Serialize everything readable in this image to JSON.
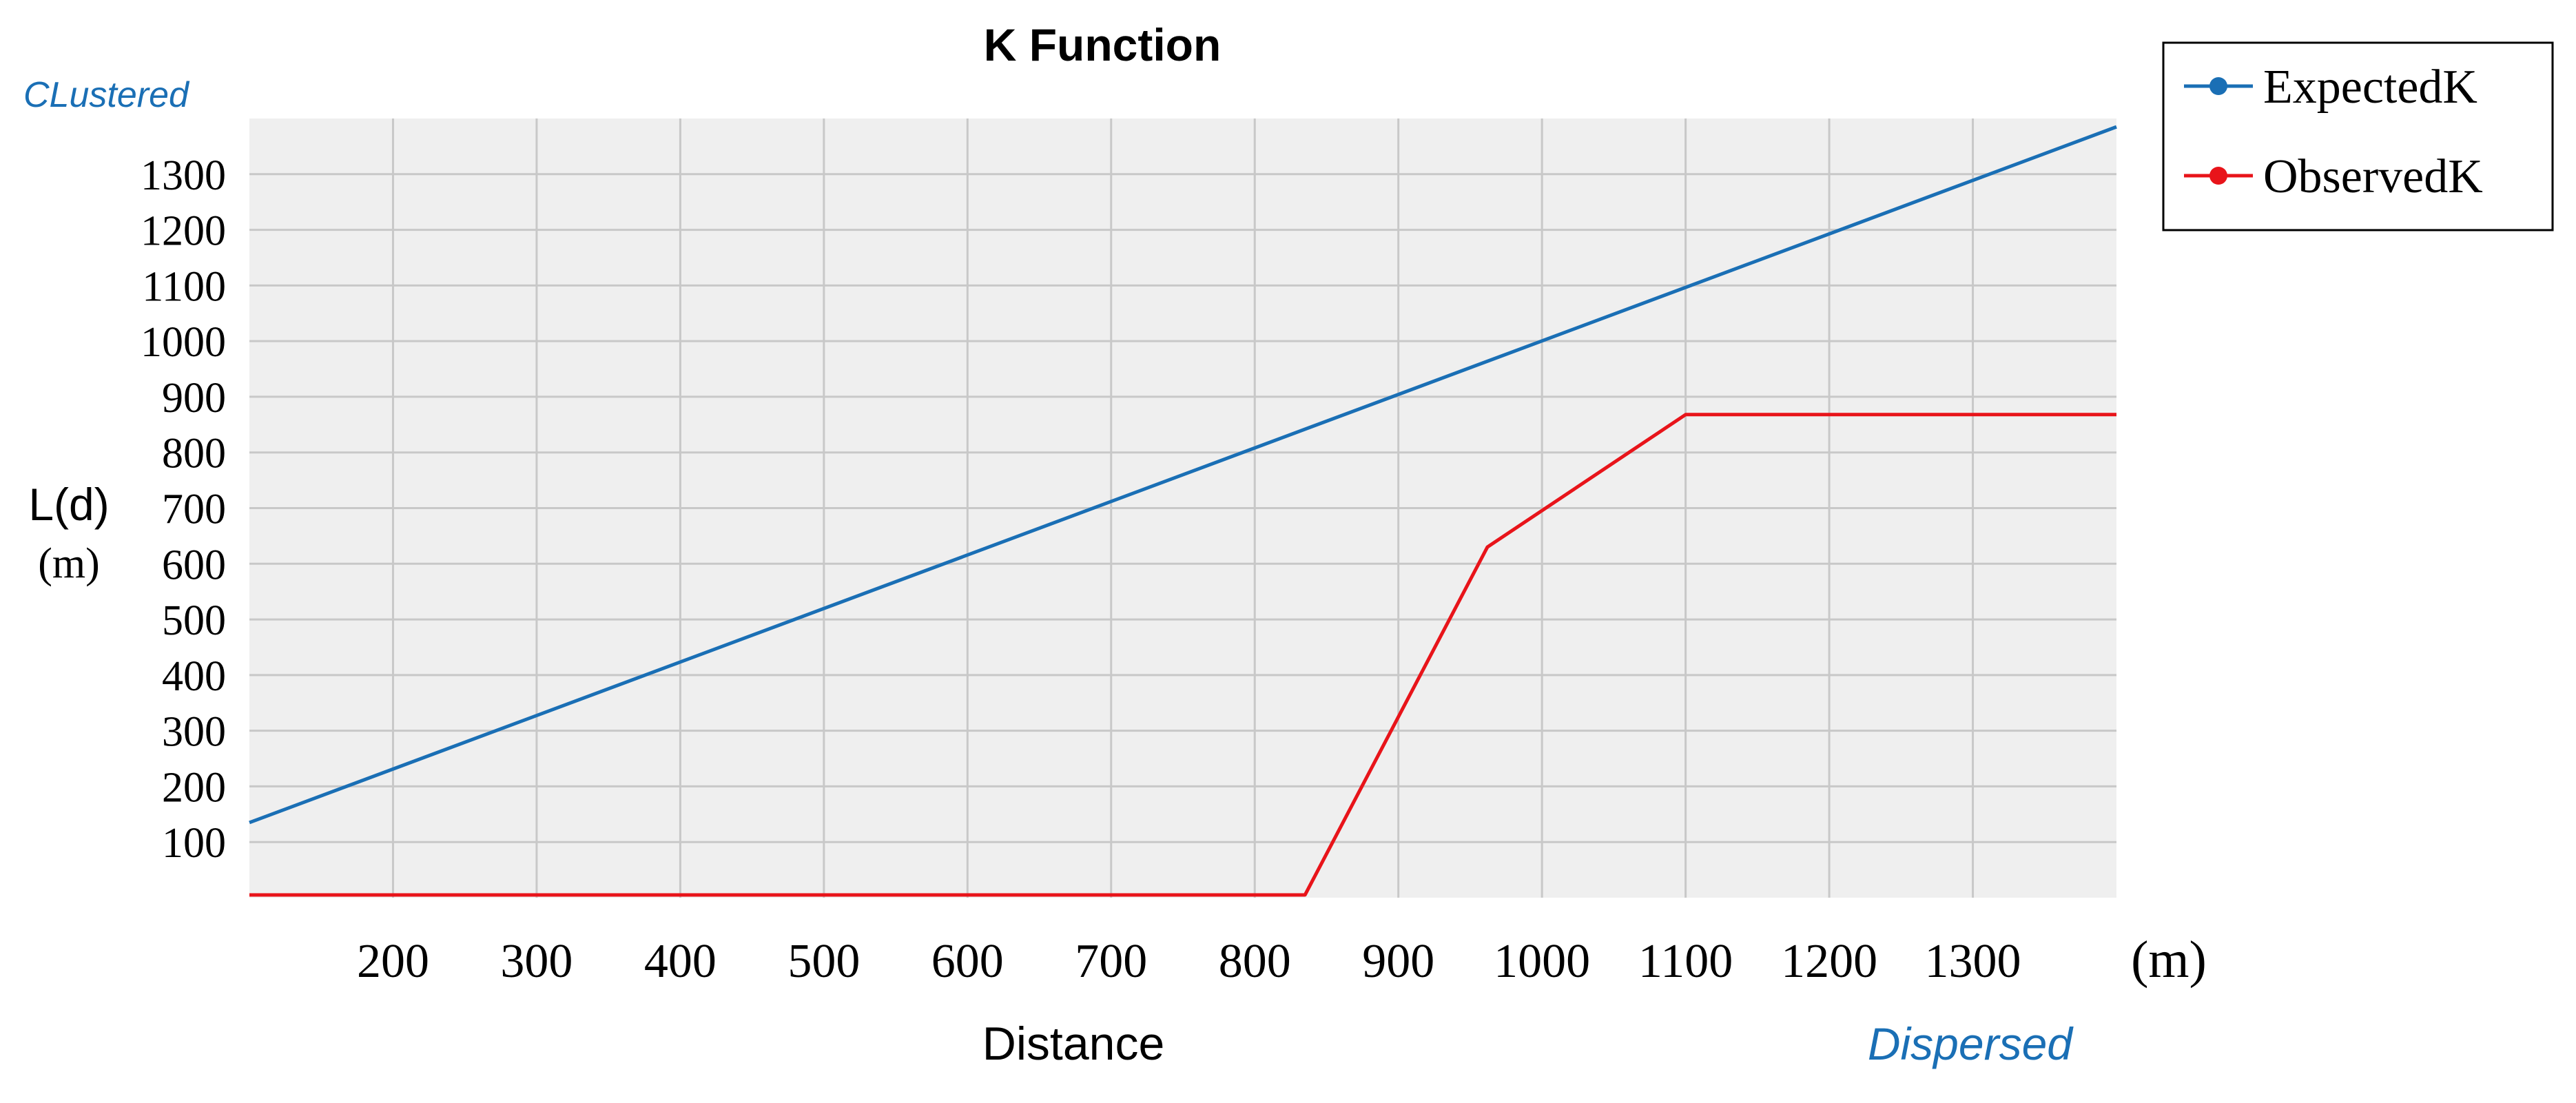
{
  "chart_data": {
    "type": "line",
    "title": "K Function",
    "xlabel": "Distance",
    "ylabel": "L(d)",
    "ylabel_unit": "(m)",
    "xunit": "(m)",
    "annotations": {
      "top_left": "CLustered",
      "bottom_right": "Dispersed"
    },
    "xlim": [
      100,
      1400
    ],
    "ylim": [
      0,
      1400
    ],
    "xticks": [
      200,
      300,
      400,
      500,
      600,
      700,
      800,
      900,
      1000,
      1100,
      1200,
      1300
    ],
    "yticks": [
      100,
      200,
      300,
      400,
      500,
      600,
      700,
      800,
      900,
      1000,
      1100,
      1200,
      1300
    ],
    "grid": true,
    "legend_position": "top-right",
    "series": [
      {
        "name": "ExpectedK",
        "color": "#1a6fb5",
        "x": [
          100,
          1400
        ],
        "y": [
          135,
          1385
        ]
      },
      {
        "name": "ObservedK",
        "color": "#e8141a",
        "x": [
          100,
          835,
          962,
          1100,
          1400
        ],
        "y": [
          5,
          5,
          630,
          868,
          868
        ]
      }
    ]
  }
}
